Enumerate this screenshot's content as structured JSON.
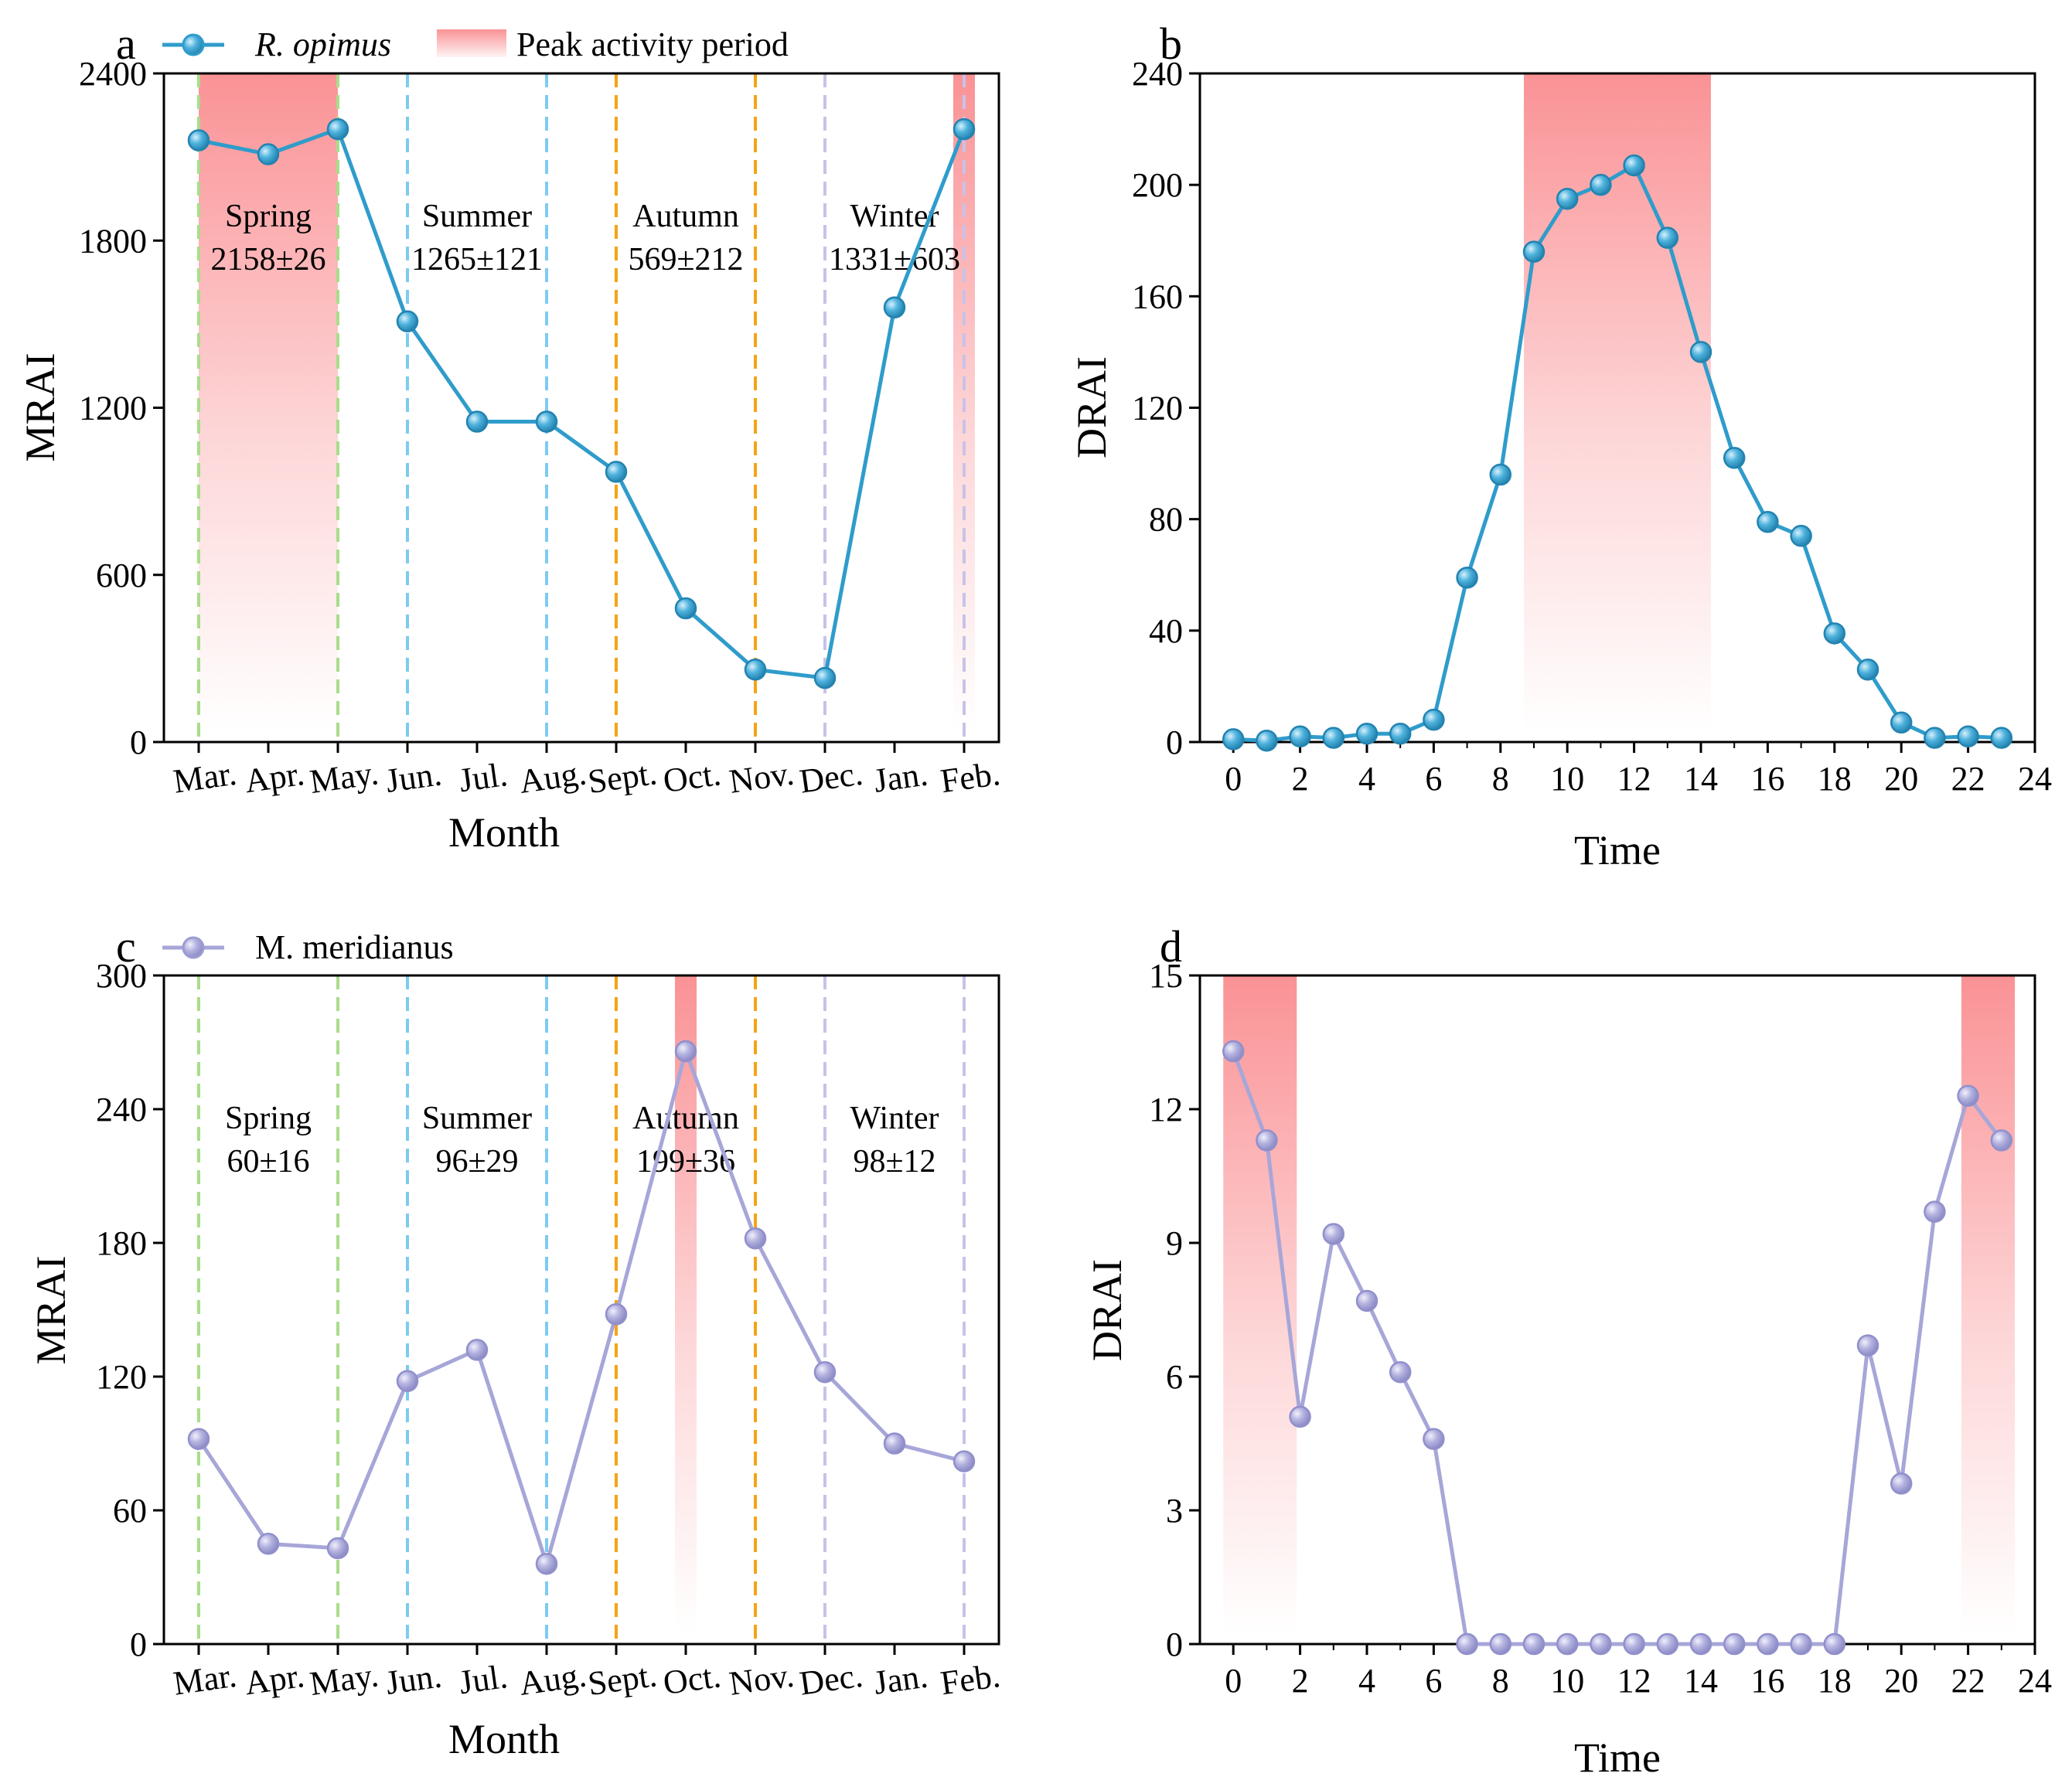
{
  "colors": {
    "ropimus": "#2f9ccb",
    "meridianus": "#a7a6d8",
    "peak": "#f9777b",
    "spring": "#a9dd8b",
    "summer": "#7ccbf2",
    "autumn": "#f5a315",
    "winter": "#c8c2e8"
  },
  "legend": {
    "series_a": "R. opimus",
    "peak": "Peak activity period",
    "series_c": "M. meridianus"
  },
  "chart_data": [
    {
      "panel": "a",
      "type": "line",
      "xlabel": "Month",
      "ylabel": "MRAI",
      "categories": [
        "Mar.",
        "Apr.",
        "May.",
        "Jun.",
        "Jul.",
        "Aug.",
        "Sept.",
        "Oct.",
        "Nov.",
        "Dec.",
        "Jan.",
        "Feb."
      ],
      "series": [
        {
          "name": "R. opimus",
          "values": [
            2160,
            2110,
            2200,
            1510,
            1150,
            1150,
            970,
            480,
            260,
            230,
            1560,
            2200
          ]
        }
      ],
      "ylim": [
        0,
        2400
      ],
      "yticks": [
        0,
        600,
        1200,
        1800,
        2400
      ],
      "peak_spans": [
        [
          0,
          2
        ],
        [
          11,
          11
        ]
      ],
      "seasons": [
        {
          "name": "Spring",
          "stat": "2158±26"
        },
        {
          "name": "Summer",
          "stat": "1265±121"
        },
        {
          "name": "Autumn",
          "stat": "569±212"
        },
        {
          "name": "Winter",
          "stat": "1331±603"
        }
      ]
    },
    {
      "panel": "b",
      "type": "line",
      "xlabel": "Time",
      "ylabel": "DRAI",
      "x": [
        0,
        1,
        2,
        3,
        4,
        5,
        6,
        7,
        8,
        9,
        10,
        11,
        12,
        13,
        14,
        15,
        16,
        17,
        18,
        19,
        20,
        21,
        22,
        23
      ],
      "series": [
        {
          "name": "R. opimus",
          "values": [
            1,
            0.5,
            2,
            1.5,
            3,
            3,
            8,
            59,
            96,
            176,
            195,
            200,
            207,
            181,
            140,
            102,
            79,
            74,
            39,
            26,
            7,
            1.5,
            2,
            1.5
          ]
        }
      ],
      "xlim": [
        -1,
        24
      ],
      "xticks": [
        0,
        2,
        4,
        6,
        8,
        10,
        12,
        14,
        16,
        18,
        20,
        22,
        24
      ],
      "ylim": [
        0,
        240
      ],
      "yticks": [
        0,
        40,
        80,
        120,
        160,
        200,
        240
      ],
      "peak_spans": [
        [
          8.7,
          14.3
        ]
      ]
    },
    {
      "panel": "c",
      "type": "line",
      "xlabel": "Month",
      "ylabel": "MRAI",
      "categories": [
        "Mar.",
        "Apr.",
        "May.",
        "Jun.",
        "Jul.",
        "Aug.",
        "Sept.",
        "Oct.",
        "Nov.",
        "Dec.",
        "Jan.",
        "Feb."
      ],
      "series": [
        {
          "name": "M. meridianus",
          "values": [
            92,
            45,
            43,
            118,
            132,
            36,
            148,
            266,
            182,
            122,
            90,
            82
          ]
        }
      ],
      "ylim": [
        0,
        300
      ],
      "yticks": [
        0,
        60,
        120,
        180,
        240,
        300
      ],
      "peak_spans": [
        [
          7,
          7
        ]
      ],
      "seasons": [
        {
          "name": "Spring",
          "stat": "60±16"
        },
        {
          "name": "Summer",
          "stat": "96±29"
        },
        {
          "name": "Autumn",
          "stat": "199±36"
        },
        {
          "name": "Winter",
          "stat": "98±12"
        }
      ]
    },
    {
      "panel": "d",
      "type": "line",
      "xlabel": "Time",
      "ylabel": "DRAI",
      "x": [
        0,
        1,
        2,
        3,
        4,
        5,
        6,
        7,
        8,
        9,
        10,
        11,
        12,
        13,
        14,
        15,
        16,
        17,
        18,
        19,
        20,
        21,
        22,
        23
      ],
      "series": [
        {
          "name": "M. meridianus",
          "values": [
            13.3,
            11.3,
            5.1,
            9.2,
            7.7,
            6.1,
            4.6,
            0,
            0,
            0,
            0,
            0,
            0,
            0,
            0,
            0,
            0,
            0,
            0,
            6.7,
            3.6,
            9.7,
            12.3,
            11.3
          ]
        }
      ],
      "xlim": [
        -1,
        24
      ],
      "xticks": [
        0,
        2,
        4,
        6,
        8,
        10,
        12,
        14,
        16,
        18,
        20,
        22,
        24
      ],
      "ylim": [
        0,
        15
      ],
      "yticks": [
        0,
        3,
        6,
        9,
        12,
        15
      ],
      "peak_spans": [
        [
          -0.3,
          1.9
        ],
        [
          21.8,
          23.4
        ]
      ]
    }
  ]
}
